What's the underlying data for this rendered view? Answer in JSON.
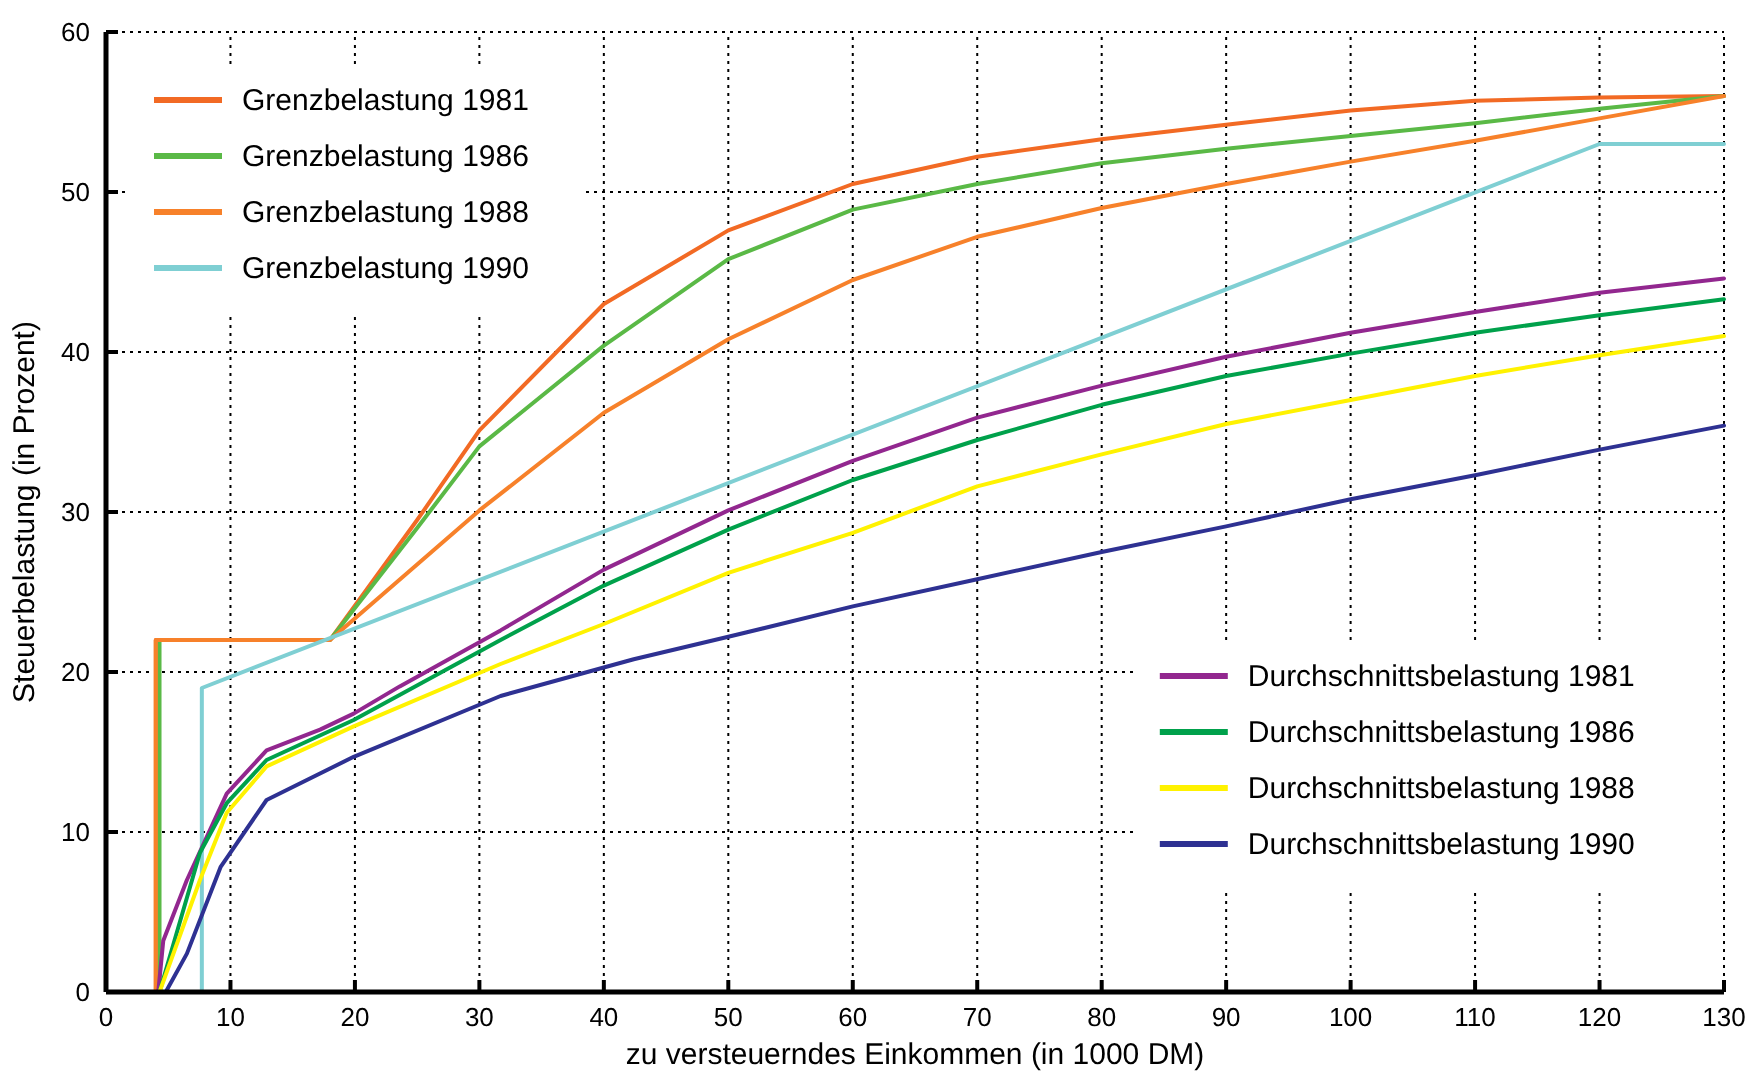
{
  "chart_data": {
    "type": "line",
    "xlabel": "zu versteuerndes Einkommen (in 1000 DM)",
    "ylabel": "Steuerbelastung (in Prozent)",
    "xlim": [
      0,
      130
    ],
    "ylim": [
      0,
      60
    ],
    "xticks": [
      0,
      10,
      20,
      30,
      40,
      50,
      60,
      70,
      80,
      90,
      100,
      110,
      120,
      130
    ],
    "yticks": [
      0,
      10,
      20,
      30,
      40,
      50,
      60
    ],
    "grid": true,
    "legend": "top left",
    "line_style": "solid",
    "marker": "none",
    "series": [
      {
        "name": "Grenzbelastung 1981",
        "color": "#f26a24",
        "x": [
          4,
          4,
          18,
          25,
          30,
          40,
          50,
          60,
          70,
          80,
          90,
          100,
          110,
          120,
          130
        ],
        "values": [
          0,
          22,
          22,
          29.5,
          35.1,
          43,
          47.6,
          50.5,
          52.2,
          53.3,
          54.2,
          55.1,
          55.7,
          55.9,
          56
        ]
      },
      {
        "name": "Grenzbelastung 1986",
        "color": "#5ab946",
        "x": [
          4.3,
          4.3,
          18,
          25,
          30,
          40,
          50,
          60,
          70,
          80,
          90,
          100,
          110,
          120,
          130
        ],
        "values": [
          0,
          22,
          22,
          29,
          34.1,
          40.4,
          45.8,
          48.9,
          50.5,
          51.8,
          52.7,
          53.5,
          54.3,
          55.2,
          56
        ]
      },
      {
        "name": "Grenzbelastung 1988",
        "color": "#f7812a",
        "x": [
          4,
          4,
          18,
          30,
          40,
          50,
          60,
          70,
          80,
          90,
          100,
          110,
          120,
          130
        ],
        "values": [
          0,
          22,
          22,
          30.1,
          36.2,
          40.8,
          44.5,
          47.2,
          49,
          50.5,
          51.9,
          53.2,
          54.6,
          56
        ]
      },
      {
        "name": "Grenzbelastung 1990",
        "color": "#7fcfd3",
        "x": [
          7.7,
          7.7,
          120,
          130
        ],
        "values": [
          0,
          19,
          53,
          53
        ]
      },
      {
        "name": "Durchschnittsbelastung 1981",
        "color": "#92278f",
        "x": [
          4.2,
          4.6,
          6.5,
          9.7,
          12.9,
          17.2,
          19.9,
          23.6,
          31.7,
          40,
          50,
          60,
          70,
          80,
          90,
          100,
          110,
          120,
          130
        ],
        "values": [
          0,
          3.2,
          7,
          12.4,
          15.1,
          16.4,
          17.4,
          19.1,
          22.6,
          26.4,
          30.1,
          33.2,
          35.9,
          37.9,
          39.7,
          41.2,
          42.5,
          43.7,
          44.6
        ]
      },
      {
        "name": "Durchschnittsbelastung 1986",
        "color": "#00a14b",
        "x": [
          4.3,
          7.55,
          9.7,
          12.9,
          19.9,
          31.7,
          40,
          50,
          60,
          70,
          80,
          90,
          100,
          110,
          120,
          130
        ],
        "values": [
          0,
          8.7,
          11.8,
          14.5,
          17,
          22,
          25.4,
          28.9,
          32,
          34.5,
          36.7,
          38.5,
          39.9,
          41.2,
          42.3,
          43.3
        ]
      },
      {
        "name": "Durchschnittsbelastung 1988",
        "color": "#fff200",
        "x": [
          4.3,
          7.55,
          9.7,
          12.9,
          19.9,
          31.7,
          40,
          50,
          60,
          70,
          80,
          90,
          100,
          110,
          120,
          130
        ],
        "values": [
          0,
          7,
          11.2,
          14.1,
          16.6,
          20.5,
          23,
          26.2,
          28.7,
          31.6,
          33.6,
          35.5,
          37,
          38.5,
          39.8,
          41
        ]
      },
      {
        "name": "Durchschnittsbelastung 1990",
        "color": "#2e3192",
        "x": [
          4.8,
          6.5,
          9.2,
          12.9,
          19.9,
          31.7,
          42.4,
          50,
          60,
          70,
          80,
          90,
          100,
          110,
          120,
          130
        ],
        "values": [
          0,
          2.4,
          7.8,
          12,
          14.7,
          18.5,
          20.8,
          22.2,
          24.1,
          25.8,
          27.5,
          29.1,
          30.8,
          32.3,
          33.9,
          35.4
        ]
      }
    ]
  }
}
